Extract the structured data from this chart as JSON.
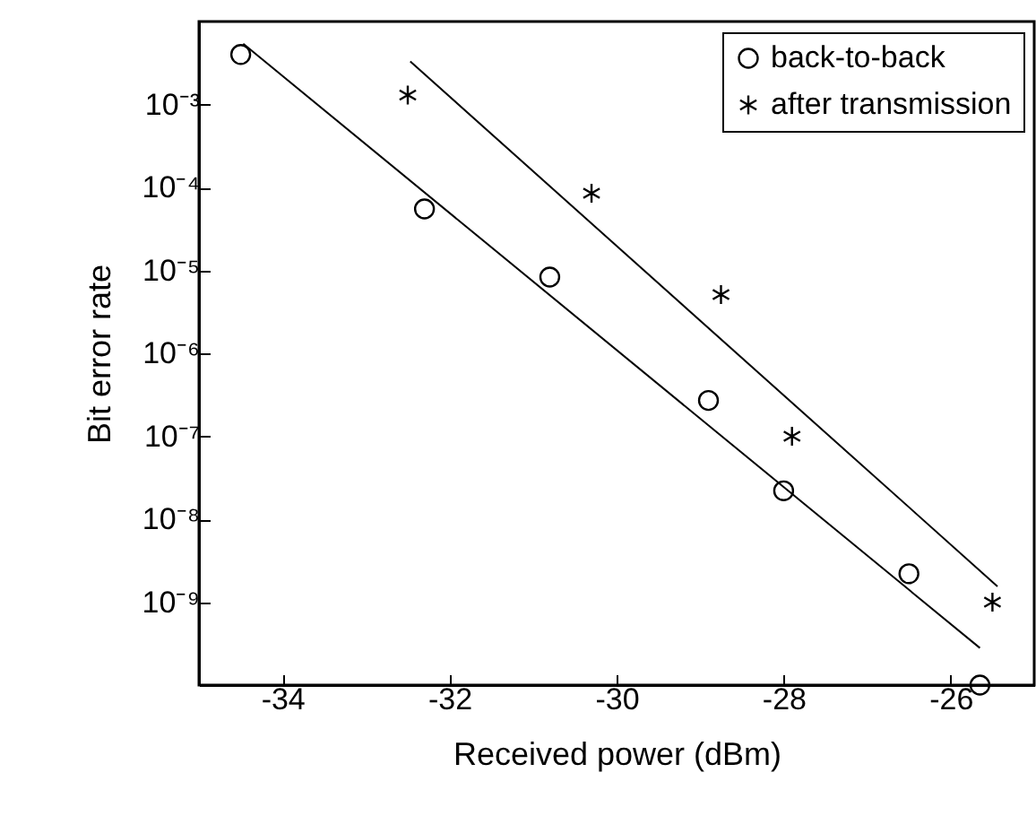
{
  "chart_data": {
    "type": "scatter",
    "xlabel": "Received power (dBm)",
    "ylabel": "Bit error rate",
    "xlim": [
      -35,
      -25
    ],
    "ylim": [
      1e-10,
      0.01
    ],
    "xticks": [
      -34,
      -32,
      -30,
      -28,
      -26
    ],
    "yticks": [
      {
        "value": 1e-09,
        "label": "10⁻⁹"
      },
      {
        "value": 1e-08,
        "label": "10⁻⁸"
      },
      {
        "value": 1e-07,
        "label": "10⁻⁷"
      },
      {
        "value": 1e-06,
        "label": "10⁻⁶"
      },
      {
        "value": 1e-05,
        "label": "10⁻⁵"
      },
      {
        "value": 0.0001,
        "label": "10⁻⁴"
      },
      {
        "value": 0.001,
        "label": "10⁻³"
      }
    ],
    "log": "y",
    "grid": false,
    "legend": "top right",
    "series": [
      {
        "name": "back-to-back",
        "marker": "circle",
        "color": "#000000",
        "x": [
          -34.5,
          -32.3,
          -30.8,
          -28.9,
          -28.0,
          -26.5,
          -25.65
        ],
        "values": [
          0.004,
          5.5e-05,
          8.3e-06,
          2.7e-07,
          2.2e-08,
          2.2e-09,
          1e-10
        ]
      },
      {
        "name": "after transmission",
        "marker": "cross",
        "color": "#000000",
        "x": [
          -32.5,
          -30.3,
          -28.75,
          -27.9,
          -25.5
        ],
        "values": [
          0.0013,
          8.5e-05,
          5.1e-06,
          1e-07,
          1e-09
        ]
      },
      {
        "type": "line",
        "color": "#000000",
        "x": [
          -34.47,
          -25.65
        ],
        "values": [
          0.0054,
          2.8e-10
        ]
      },
      {
        "type": "line",
        "color": "#000000",
        "x": [
          -32.47,
          -25.44
        ],
        "values": [
          0.0033,
          1.55e-09
        ]
      }
    ]
  }
}
